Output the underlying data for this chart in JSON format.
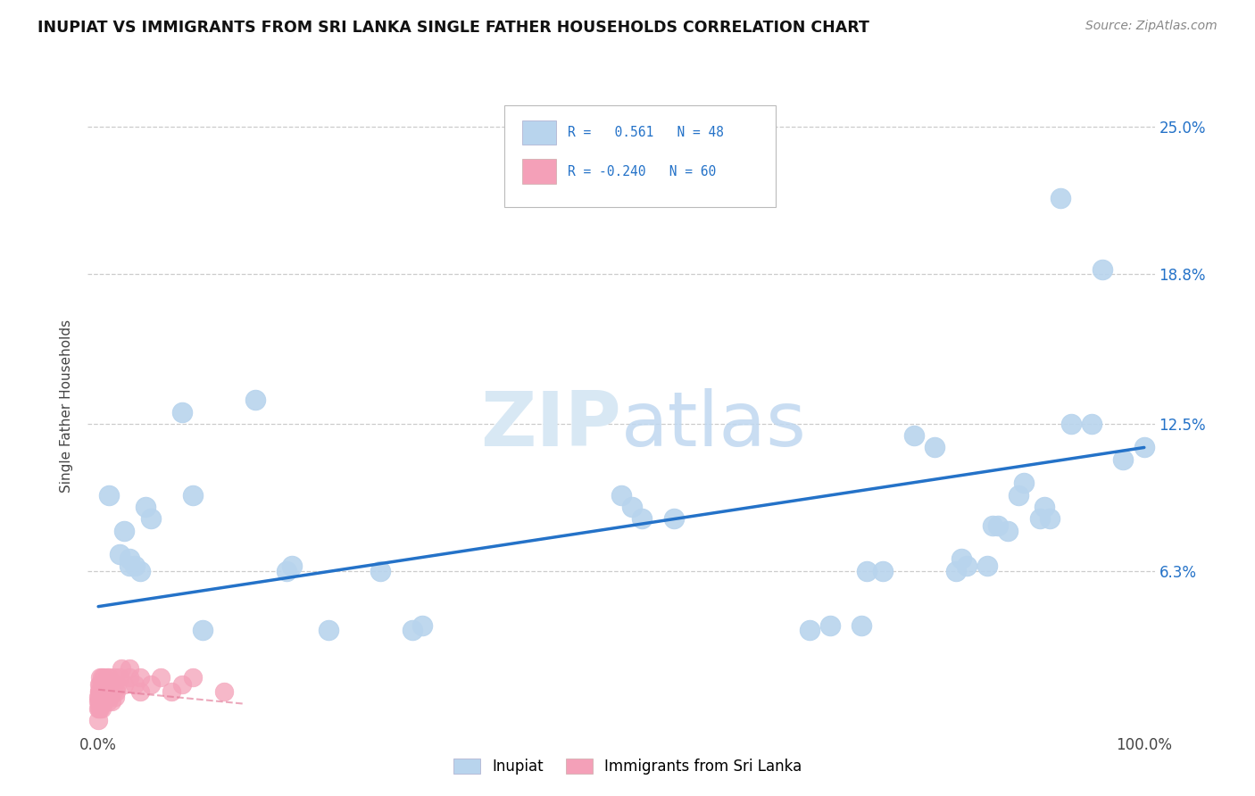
{
  "title": "INUPIAT VS IMMIGRANTS FROM SRI LANKA SINGLE FATHER HOUSEHOLDS CORRELATION CHART",
  "source": "Source: ZipAtlas.com",
  "ylabel": "Single Father Households",
  "ytick_labels": [
    "6.3%",
    "12.5%",
    "18.8%",
    "25.0%"
  ],
  "ytick_values": [
    0.063,
    0.125,
    0.188,
    0.25
  ],
  "xlim": [
    -0.01,
    1.01
  ],
  "ylim": [
    -0.005,
    0.27
  ],
  "inupiat_color": "#b8d4ed",
  "sri_lanka_color": "#f4a0b8",
  "trend_inupiat_color": "#2472c8",
  "trend_sri_lanka_color": "#e07090",
  "watermark_color": "#d8e8f4",
  "inupiat_points": [
    [
      0.01,
      0.095
    ],
    [
      0.02,
      0.07
    ],
    [
      0.025,
      0.08
    ],
    [
      0.03,
      0.065
    ],
    [
      0.03,
      0.068
    ],
    [
      0.035,
      0.065
    ],
    [
      0.04,
      0.063
    ],
    [
      0.045,
      0.09
    ],
    [
      0.05,
      0.085
    ],
    [
      0.08,
      0.13
    ],
    [
      0.09,
      0.095
    ],
    [
      0.1,
      0.038
    ],
    [
      0.15,
      0.135
    ],
    [
      0.18,
      0.063
    ],
    [
      0.185,
      0.065
    ],
    [
      0.22,
      0.038
    ],
    [
      0.27,
      0.063
    ],
    [
      0.3,
      0.038
    ],
    [
      0.31,
      0.04
    ],
    [
      0.5,
      0.095
    ],
    [
      0.51,
      0.09
    ],
    [
      0.52,
      0.085
    ],
    [
      0.55,
      0.085
    ],
    [
      0.68,
      0.038
    ],
    [
      0.7,
      0.04
    ],
    [
      0.73,
      0.04
    ],
    [
      0.735,
      0.063
    ],
    [
      0.75,
      0.063
    ],
    [
      0.78,
      0.12
    ],
    [
      0.8,
      0.115
    ],
    [
      0.82,
      0.063
    ],
    [
      0.825,
      0.068
    ],
    [
      0.83,
      0.065
    ],
    [
      0.85,
      0.065
    ],
    [
      0.855,
      0.082
    ],
    [
      0.86,
      0.082
    ],
    [
      0.87,
      0.08
    ],
    [
      0.88,
      0.095
    ],
    [
      0.885,
      0.1
    ],
    [
      0.9,
      0.085
    ],
    [
      0.905,
      0.09
    ],
    [
      0.91,
      0.085
    ],
    [
      0.92,
      0.22
    ],
    [
      0.93,
      0.125
    ],
    [
      0.95,
      0.125
    ],
    [
      0.96,
      0.19
    ],
    [
      0.98,
      0.11
    ],
    [
      1.0,
      0.115
    ]
  ],
  "sri_lanka_points": [
    [
      0.0,
      0.0
    ],
    [
      0.0,
      0.005
    ],
    [
      0.0,
      0.008
    ],
    [
      0.0,
      0.01
    ],
    [
      0.001,
      0.012
    ],
    [
      0.001,
      0.015
    ],
    [
      0.001,
      0.005
    ],
    [
      0.001,
      0.008
    ],
    [
      0.001,
      0.01
    ],
    [
      0.001,
      0.012
    ],
    [
      0.002,
      0.005
    ],
    [
      0.002,
      0.008
    ],
    [
      0.002,
      0.012
    ],
    [
      0.002,
      0.015
    ],
    [
      0.002,
      0.018
    ],
    [
      0.003,
      0.005
    ],
    [
      0.003,
      0.008
    ],
    [
      0.003,
      0.01
    ],
    [
      0.003,
      0.015
    ],
    [
      0.003,
      0.018
    ],
    [
      0.004,
      0.008
    ],
    [
      0.004,
      0.012
    ],
    [
      0.004,
      0.015
    ],
    [
      0.005,
      0.01
    ],
    [
      0.005,
      0.012
    ],
    [
      0.005,
      0.015
    ],
    [
      0.005,
      0.018
    ],
    [
      0.006,
      0.008
    ],
    [
      0.006,
      0.012
    ],
    [
      0.007,
      0.015
    ],
    [
      0.008,
      0.01
    ],
    [
      0.008,
      0.018
    ],
    [
      0.009,
      0.008
    ],
    [
      0.009,
      0.015
    ],
    [
      0.01,
      0.012
    ],
    [
      0.01,
      0.018
    ],
    [
      0.011,
      0.01
    ],
    [
      0.012,
      0.012
    ],
    [
      0.012,
      0.015
    ],
    [
      0.013,
      0.008
    ],
    [
      0.014,
      0.012
    ],
    [
      0.015,
      0.015
    ],
    [
      0.015,
      0.018
    ],
    [
      0.016,
      0.01
    ],
    [
      0.017,
      0.012
    ],
    [
      0.018,
      0.015
    ],
    [
      0.02,
      0.018
    ],
    [
      0.022,
      0.022
    ],
    [
      0.025,
      0.015
    ],
    [
      0.03,
      0.018
    ],
    [
      0.03,
      0.022
    ],
    [
      0.035,
      0.015
    ],
    [
      0.04,
      0.012
    ],
    [
      0.04,
      0.018
    ],
    [
      0.05,
      0.015
    ],
    [
      0.06,
      0.018
    ],
    [
      0.07,
      0.012
    ],
    [
      0.08,
      0.015
    ],
    [
      0.09,
      0.018
    ],
    [
      0.12,
      0.012
    ]
  ],
  "inupiat_trend_x": [
    0.0,
    1.0
  ],
  "inupiat_trend_y": [
    0.048,
    0.115
  ],
  "sri_lanka_trend_x": [
    0.0,
    0.14
  ],
  "sri_lanka_trend_y": [
    0.013,
    0.007
  ]
}
